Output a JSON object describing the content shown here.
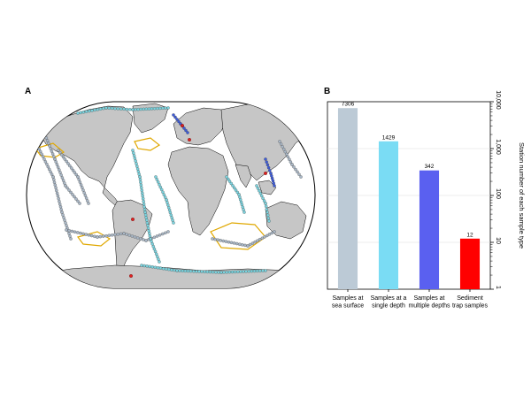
{
  "panels": {
    "map_label": "A",
    "chart_label": "B"
  },
  "map": {
    "land_color": "#c6c6c6",
    "ocean_color": "#ffffff",
    "marker_colors": {
      "sea_surface": "#a9b7c6",
      "single_depth": "#7ad3de",
      "multiple_depths": "#3c5ad8",
      "sediment_trap": "#e02020"
    },
    "outline_color": "#e0a800"
  },
  "chart_data": {
    "type": "bar",
    "categories": [
      "Samples at sea surface",
      "Samples at a single depth",
      "Samples at multiple depths",
      "Sediment trap samples"
    ],
    "category_lines": [
      [
        "Samples at",
        "sea surface"
      ],
      [
        "Samples at a",
        "single depth"
      ],
      [
        "Samples at",
        "multiple depths"
      ],
      [
        "Sediment",
        "trap samples"
      ]
    ],
    "values": [
      7306,
      1429,
      342,
      12
    ],
    "value_labels": [
      "7306",
      "1429",
      "342",
      "12"
    ],
    "colors": [
      "#bccad6",
      "#7adcf4",
      "#5a60f0",
      "#ff0000"
    ],
    "ylabel": "Station number of each sample type",
    "yscale": "log",
    "ylim": [
      1,
      10000
    ],
    "yticks": [
      1,
      10,
      100,
      1000,
      10000
    ],
    "ytick_labels": [
      "1",
      "10",
      "100",
      "1,000",
      "10,000"
    ],
    "grid": true,
    "title": "",
    "xlabel": ""
  }
}
